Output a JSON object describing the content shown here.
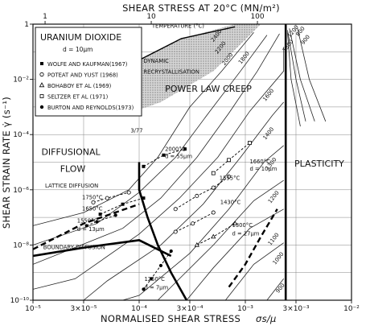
{
  "chart_data": {
    "type": "line",
    "title": "URANIUM DIOXIDE",
    "subtitle": "d = 10μm",
    "xlabel": "NORMALISED SHEAR STRESS",
    "xlabel_symbol": "σs/μ",
    "ylabel": "SHEAR STRAIN RATE γ̇ (s⁻¹)",
    "top_label": "SHEAR STRESS AT 20°C (MN/m²)",
    "x_scale": "log",
    "y_scale": "log",
    "xlim": [
      1e-05,
      0.01
    ],
    "ylim": [
      1e-10,
      1
    ],
    "grid": true,
    "x_ticks": [
      {
        "label": "10⁻⁵",
        "v": 1e-05
      },
      {
        "label": "3×10⁻⁵",
        "v": 3e-05
      },
      {
        "label": "10⁻⁴",
        "v": 0.0001
      },
      {
        "label": "3×10⁻⁴",
        "v": 0.0003
      },
      {
        "label": "10⁻³",
        "v": 0.001
      },
      {
        "label": "3×10⁻³",
        "v": 0.003
      },
      {
        "label": "10⁻²",
        "v": 0.01
      }
    ],
    "top_ticks": [
      {
        "label": "1",
        "v": 1.3e-05
      },
      {
        "label": "10",
        "v": 0.00013
      },
      {
        "label": "100",
        "v": 0.0013
      }
    ],
    "y_ticks": [
      {
        "label": "1",
        "v": 1
      },
      {
        "label": "10⁻²",
        "v": 0.01
      },
      {
        "label": "10⁻⁴",
        "v": 0.0001
      },
      {
        "label": "10⁻⁶",
        "v": 1e-06
      },
      {
        "label": "10⁻⁸",
        "v": 1e-08
      },
      {
        "label": "10⁻¹⁰",
        "v": 1e-10
      }
    ],
    "legend": {
      "placement": "top-left",
      "entries": [
        {
          "marker": "filled-square",
          "label": "WOLFE AND KAUFMAN(1967)"
        },
        {
          "marker": "open-circle",
          "label": "POTEAT AND YUST (1968)"
        },
        {
          "marker": "triangle",
          "label": "BOHABOY ET AL (1969)"
        },
        {
          "marker": "open-square",
          "label": "SELTZER ET AL (1971)"
        },
        {
          "marker": "filled-circle",
          "label": "BURTON AND REYNOLDS(1973)"
        }
      ]
    },
    "regions": [
      {
        "label": "DIFFUSIONAL",
        "x": 1.2e-05,
        "y": 1.8e-05
      },
      {
        "label": "FLOW",
        "x": 1.8e-05,
        "y": 4.5e-06
      },
      {
        "label": "POWER LAW CREEP",
        "x": 0.000175,
        "y": 0.0035
      },
      {
        "label": "PLASTICITY",
        "x": 0.0029,
        "y": 7e-06
      },
      {
        "label": "LATTICE DIFFUSION",
        "x": 1.3e-05,
        "y": 1.2e-06
      },
      {
        "label": "BOUNDARY DIFFUSION",
        "x": 1.25e-05,
        "y": 7e-09
      },
      {
        "label": "DYNAMIC",
        "x": 0.00011,
        "y": 0.04
      },
      {
        "label": "RECRYSTALLISATION",
        "x": 0.00011,
        "y": 0.016
      },
      {
        "label": "TEMPERATURE (°C)",
        "x": 0.000132,
        "y": 0.75
      }
    ],
    "contour_series": [
      {
        "name": "2400",
        "points": [
          [
            0.0012,
            0.5
          ],
          [
            0.0006,
            0.02
          ],
          [
            0.0003,
            0.001
          ],
          [
            0.00015,
            1.5e-05
          ],
          [
            8e-05,
            1e-06
          ],
          [
            3e-05,
            1.5e-07
          ],
          [
            1e-05,
            5e-08
          ]
        ]
      },
      {
        "name": "2200",
        "points": [
          [
            0.0016,
            0.4
          ],
          [
            0.0009,
            0.02
          ],
          [
            0.00045,
            0.0006
          ],
          [
            0.00022,
            1.5e-05
          ],
          [
            0.0001,
            8e-07
          ],
          [
            4e-05,
            6e-08
          ],
          [
            1e-05,
            1e-08
          ]
        ]
      },
      {
        "name": "2000",
        "points": [
          [
            0.0021,
            0.45
          ],
          [
            0.0013,
            0.02
          ],
          [
            0.0007,
            0.0006
          ],
          [
            0.00035,
            1.5e-05
          ],
          [
            0.00016,
            5e-07
          ],
          [
            7e-05,
            4e-08
          ],
          [
            1e-05,
            2e-09
          ]
        ]
      },
      {
        "name": "1800",
        "points": [
          [
            0.0023,
            0.15
          ],
          [
            0.0023,
            0.02
          ],
          [
            0.0011,
            0.0007
          ],
          [
            0.00055,
            1.5e-05
          ],
          [
            0.00024,
            5e-07
          ],
          [
            0.0001,
            2.5e-08
          ],
          [
            2.5e-05,
            6e-10
          ],
          [
            1e-05,
            2.5e-10
          ]
        ]
      },
      {
        "name": "1600",
        "points": [
          [
            0.0023,
            0.0015
          ],
          [
            0.0018,
            0.0005
          ],
          [
            0.0009,
            1.5e-05
          ],
          [
            0.0004,
            3e-07
          ],
          [
            0.00016,
            1e-08
          ],
          [
            5e-05,
            5e-10
          ],
          [
            3e-05,
            1e-10
          ]
        ]
      },
      {
        "name": "1400",
        "points": [
          [
            0.0023,
            4e-05
          ],
          [
            0.0015,
            1e-05
          ],
          [
            0.0007,
            2e-07
          ],
          [
            0.0003,
            5e-09
          ],
          [
            0.0001,
            1.5e-10
          ],
          [
            7e-05,
            1e-10
          ]
        ]
      },
      {
        "name": "1300",
        "points": [
          [
            0.0023,
            2.2e-06
          ],
          [
            0.0012,
            4e-07
          ],
          [
            0.0005,
            1e-08
          ],
          [
            0.0002,
            3e-10
          ],
          [
            0.00015,
            1e-10
          ]
        ]
      },
      {
        "name": "1200",
        "points": [
          [
            0.0023,
            2e-07
          ],
          [
            0.0011,
            4e-08
          ],
          [
            0.0005,
            1.5e-09
          ],
          [
            0.00028,
            1e-10
          ]
        ]
      },
      {
        "name": "1100",
        "points": [
          [
            0.0023,
            1.2e-08
          ],
          [
            0.0012,
            2e-09
          ],
          [
            0.00065,
            1e-10
          ]
        ]
      },
      {
        "name": "1000",
        "points": [
          [
            0.0023,
            6e-10
          ],
          [
            0.0016,
            1e-10
          ]
        ]
      },
      {
        "name": "900",
        "points": [
          [
            0.0026,
            0.7
          ],
          [
            0.0033,
            0.01
          ],
          [
            0.0045,
            0.0003
          ]
        ]
      },
      {
        "name": "800",
        "points": [
          [
            0.0031,
            0.7
          ],
          [
            0.004,
            0.01
          ],
          [
            0.0057,
            0.0003
          ]
        ]
      },
      {
        "name": "1300",
        "points": [
          [
            0.0025,
            0.5
          ],
          [
            0.0027,
            0.01
          ],
          [
            0.0033,
            0.0002
          ]
        ]
      },
      {
        "name": "1200",
        "points": [
          [
            0.0025,
            0.6
          ],
          [
            0.003,
            0.01
          ],
          [
            0.0037,
            0.0003
          ]
        ]
      }
    ],
    "contour_labels": [
      {
        "text": "2400",
        "x": 0.00055,
        "y": 0.35
      },
      {
        "text": "2200",
        "x": 0.0006,
        "y": 0.13
      },
      {
        "text": "2000",
        "x": 0.0007,
        "y": 0.05
      },
      {
        "text": "1800",
        "x": 0.001,
        "y": 0.055
      },
      {
        "text": "1600",
        "x": 0.0017,
        "y": 0.0025
      },
      {
        "text": "1400",
        "x": 0.0017,
        "y": 0.0001
      },
      {
        "text": "1300",
        "x": 0.0018,
        "y": 8e-06
      },
      {
        "text": "1200",
        "x": 0.0019,
        "y": 5e-07
      },
      {
        "text": "1100",
        "x": 0.0019,
        "y": 1.5e-08
      },
      {
        "text": "1000",
        "x": 0.0021,
        "y": 3e-09
      },
      {
        "text": "900",
        "x": 0.0022,
        "y": 2.5e-10
      },
      {
        "text": "800",
        "x": 0.0034,
        "y": 0.5
      },
      {
        "text": "900",
        "x": 0.0038,
        "y": 0.25
      },
      {
        "text": "1200",
        "x": 0.0029,
        "y": 0.5
      },
      {
        "text": "1300",
        "x": 0.0026,
        "y": 0.15
      }
    ],
    "boundary_series": [
      {
        "name": "dynamic recrystallisation",
        "points": [
          [
            0.0001,
            0.05
          ],
          [
            0.00025,
            0.3
          ],
          [
            0.0008,
            0.8
          ]
        ]
      },
      {
        "name": "diffusional / power law",
        "points": [
          [
            0.0001,
            1e-05
          ],
          [
            0.0001,
            3e-06
          ],
          [
            0.0001,
            1e-06
          ],
          [
            0.00012,
            1e-07
          ],
          [
            0.00015,
            1e-08
          ],
          [
            0.0002,
            1e-09
          ],
          [
            0.00028,
            1e-10
          ]
        ]
      },
      {
        "name": "plasticity",
        "points": [
          [
            0.0024,
            1
          ],
          [
            0.0024,
            1e-06
          ],
          [
            0.0024,
            1e-10
          ]
        ]
      },
      {
        "name": "lattice / boundary",
        "points": [
          [
            1e-05,
            4e-09
          ],
          [
            3e-05,
            8e-09
          ],
          [
            0.0001,
            1.5e-08
          ],
          [
            0.0002,
            4e-09
          ]
        ]
      }
    ],
    "experimental_series": [
      {
        "name": "2000°C d=55μm",
        "marker": "filled-square",
        "points": [
          [
            0.00011,
            7e-06
          ],
          [
            0.00017,
            1.8e-05
          ],
          [
            0.00027,
            3e-05
          ]
        ]
      },
      {
        "name": "1750°C",
        "marker": "open-circle",
        "points": [
          [
            3.7e-05,
            3.5e-07
          ],
          [
            5e-05,
            5e-07
          ],
          [
            8e-05,
            8e-07
          ]
        ]
      },
      {
        "name": "1650°C",
        "marker": "filled-square",
        "points": [
          [
            4.3e-05,
            1.3e-07
          ],
          [
            7e-05,
            3e-07
          ],
          [
            0.00011,
            5e-07
          ]
        ]
      },
      {
        "name": "1550°C d=13μm",
        "marker": "filled-circle",
        "points": [
          [
            3.2e-05,
            5e-08
          ],
          [
            4e-05,
            7e-08
          ],
          [
            6e-05,
            1.2e-07
          ]
        ]
      },
      {
        "name": "1660°C d=10μm",
        "marker": "open-square",
        "points": [
          [
            0.0005,
            4e-06
          ],
          [
            0.0007,
            1.2e-05
          ],
          [
            0.0011,
            5e-05
          ]
        ]
      },
      {
        "name": "1535°C",
        "marker": "open-circle",
        "points": [
          [
            0.00022,
            2e-07
          ],
          [
            0.00035,
            6e-07
          ],
          [
            0.0005,
            1.2e-06
          ],
          [
            0.0007,
            3e-06
          ]
        ]
      },
      {
        "name": "1430°C",
        "marker": "open-circle",
        "points": [
          [
            0.00022,
            3e-08
          ],
          [
            0.00032,
            6e-08
          ],
          [
            0.0005,
            1.5e-07
          ]
        ]
      },
      {
        "name": "1300°C d=27μm",
        "marker": "triangle",
        "points": [
          [
            0.00035,
            1e-08
          ],
          [
            0.0005,
            2e-08
          ],
          [
            0.0008,
            6e-08
          ]
        ]
      },
      {
        "name": "1250°C d=7μm",
        "marker": "filled-circle",
        "points": [
          [
            0.00011,
            2.5e-10
          ],
          [
            0.00013,
            6e-10
          ],
          [
            0.00016,
            1.8e-09
          ],
          [
            0.0002,
            6e-09
          ]
        ]
      },
      {
        "name": "dashed trend low",
        "marker": "none",
        "points": [
          [
            1e-05,
            7e-09
          ],
          [
            3e-05,
            6e-08
          ],
          [
            0.0001,
            3e-07
          ]
        ]
      },
      {
        "name": "dashed trend high",
        "marker": "none",
        "points": [
          [
            0.0007,
            3e-10
          ],
          [
            0.001,
            2e-09
          ],
          [
            0.0014,
            2e-08
          ],
          [
            0.002,
            2e-07
          ]
        ]
      }
    ],
    "point_labels": [
      {
        "text": "2000°C",
        "x": 0.000175,
        "y": 2.6e-05
      },
      {
        "text": "d = 55μm",
        "x": 0.000175,
        "y": 1.4e-05
      },
      {
        "text": "1660°C",
        "x": 0.0011,
        "y": 9e-06
      },
      {
        "text": "d = 10μm",
        "x": 0.0011,
        "y": 5e-06
      },
      {
        "text": "1535°C",
        "x": 0.00057,
        "y": 2.3e-06
      },
      {
        "text": "1430°C",
        "x": 0.00058,
        "y": 3e-07
      },
      {
        "text": "1750°C",
        "x": 2.9e-05,
        "y": 4.5e-07
      },
      {
        "text": "1650°C",
        "x": 2.9e-05,
        "y": 1.8e-07
      },
      {
        "text": "1550°C",
        "x": 2.6e-05,
        "y": 6.5e-08
      },
      {
        "text": "d = 13μm",
        "x": 2.6e-05,
        "y": 3.2e-08
      },
      {
        "text": "1300°C",
        "x": 0.00075,
        "y": 4.5e-08
      },
      {
        "text": "d = 27μm",
        "x": 0.00075,
        "y": 2.2e-08
      },
      {
        "text": "1250°C",
        "x": 0.000112,
        "y": 5e-10
      },
      {
        "text": "d = 7μm",
        "x": 0.000112,
        "y": 2.5e-10
      },
      {
        "text": "3/77",
        "x": 8.3e-05,
        "y": 0.00012
      }
    ]
  }
}
